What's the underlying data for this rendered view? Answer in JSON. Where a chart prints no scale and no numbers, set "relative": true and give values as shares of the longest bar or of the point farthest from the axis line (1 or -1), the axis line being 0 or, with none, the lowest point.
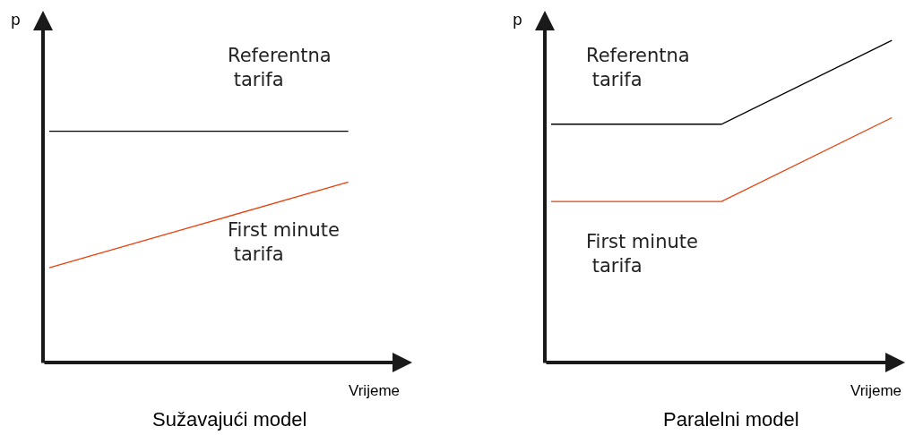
{
  "chart_data": [
    {
      "type": "line",
      "title": "Sužavajući model",
      "xlabel": "Vrijeme",
      "ylabel": "p",
      "relative": true,
      "categories": [
        null,
        null
      ],
      "series": [
        {
          "name": "Referentna tarifa",
          "color": "#000000",
          "values": [
            1,
            1
          ]
        },
        {
          "name": "First minute tarifa",
          "color": "#e8400c",
          "values": [
            0.41,
            0.78
          ]
        }
      ]
    },
    {
      "type": "line",
      "title": "Paralelni model",
      "xlabel": "Vrijeme",
      "ylabel": "p",
      "relative": true,
      "categories": [
        null,
        null,
        null
      ],
      "series": [
        {
          "name": "Referentna tarifa",
          "color": "#000000",
          "values": [
            0.74,
            0.74,
            1
          ]
        },
        {
          "name": "First minute tarifa",
          "color": "#e8400c",
          "values": [
            0.5,
            0.5,
            0.76
          ]
        }
      ]
    }
  ]
}
